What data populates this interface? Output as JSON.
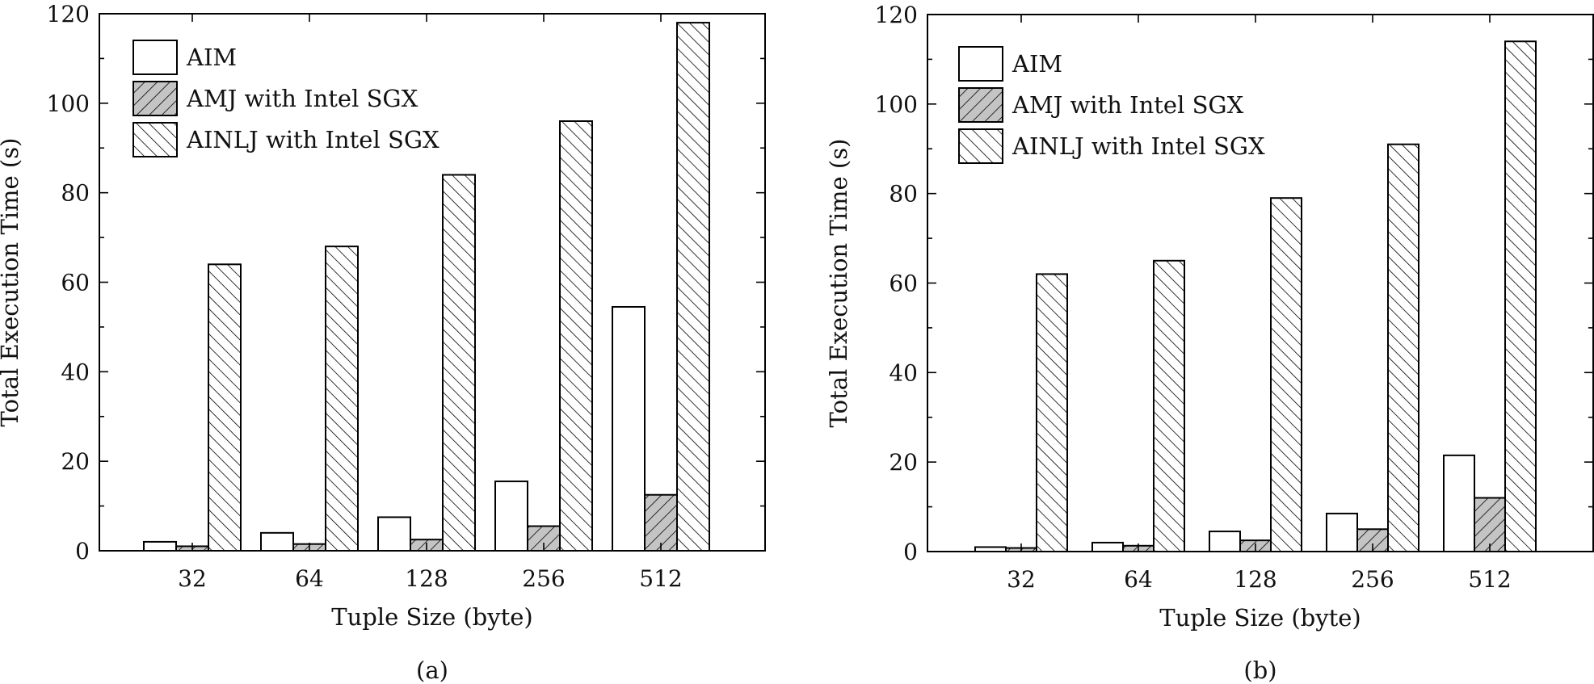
{
  "chart_data": [
    {
      "type": "bar",
      "caption": "(a)",
      "xlabel": "Tuple Size (byte)",
      "ylabel": "Total Execution Time (s)",
      "ylim": [
        0,
        120
      ],
      "yticks": [
        0,
        20,
        40,
        60,
        80,
        100,
        120
      ],
      "categories": [
        "32",
        "64",
        "128",
        "256",
        "512"
      ],
      "legend_position": "top-left",
      "series": [
        {
          "name": "AIM",
          "pattern": "white",
          "values": [
            2,
            4,
            7.5,
            15.5,
            54.5
          ]
        },
        {
          "name": "AMJ with Intel SGX",
          "pattern": "gray-hatch",
          "values": [
            1,
            1.5,
            2.5,
            5.5,
            12.5
          ]
        },
        {
          "name": "AINLJ with Intel SGX",
          "pattern": "back-hatch",
          "values": [
            64,
            68,
            84,
            96,
            118
          ]
        }
      ]
    },
    {
      "type": "bar",
      "caption": "(b)",
      "xlabel": "Tuple Size (byte)",
      "ylabel": "Total Execution Time (s)",
      "ylim": [
        0,
        120
      ],
      "yticks": [
        0,
        20,
        40,
        60,
        80,
        100,
        120
      ],
      "categories": [
        "32",
        "64",
        "128",
        "256",
        "512"
      ],
      "legend_position": "top-left",
      "series": [
        {
          "name": "AIM",
          "pattern": "white",
          "values": [
            1,
            2,
            4.5,
            8.5,
            21.5
          ]
        },
        {
          "name": "AMJ with Intel SGX",
          "pattern": "gray-hatch",
          "values": [
            0.8,
            1.3,
            2.5,
            5,
            12
          ]
        },
        {
          "name": "AINLJ with Intel SGX",
          "pattern": "back-hatch",
          "values": [
            62,
            65,
            79,
            91,
            114
          ]
        }
      ]
    }
  ],
  "colors": {
    "axis": "#000000",
    "aim_fill": "#ffffff",
    "amj_fill": "#c4c4c4",
    "ainlj_fill": "#ffffff",
    "hatch": "#000000"
  }
}
